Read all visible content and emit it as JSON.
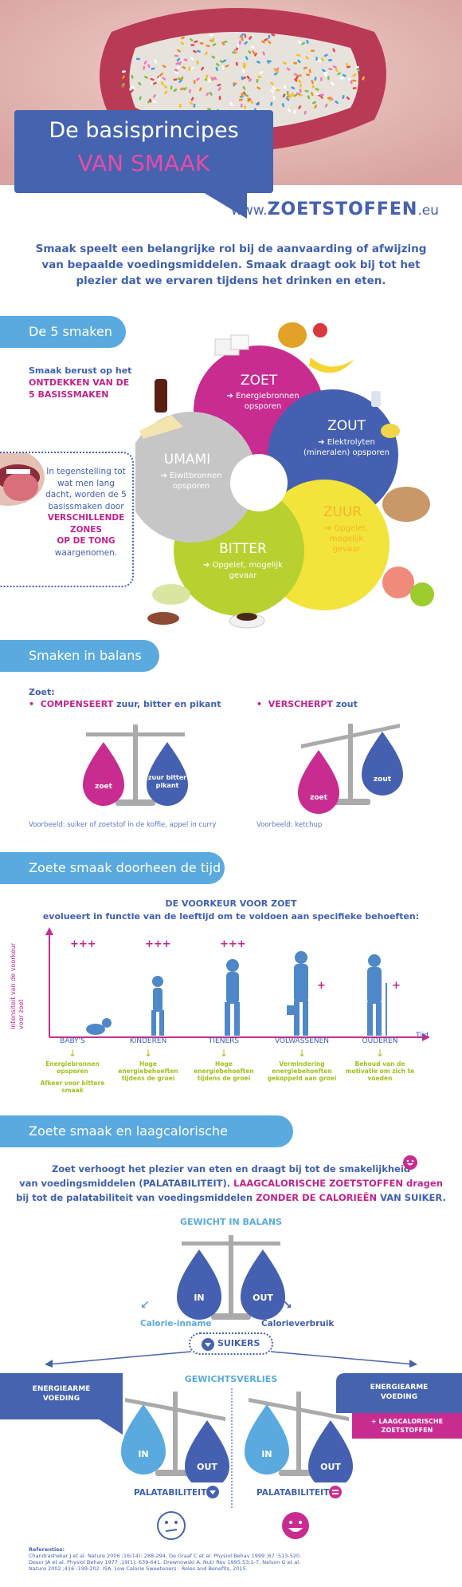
{
  "header": {
    "title_line1": "De basisprincipes",
    "title_line2": "VAN SMAAK",
    "site_prefix": "www.",
    "site_brand": "ZOETSTOFFEN",
    "site_suffix": ".eu"
  },
  "intro": "Smaak speelt een belangrijke rol bij de aanvaarding of afwijzing van bepaalde voedingsmiddelen. Smaak draagt ook bij tot het plezier dat we ervaren tijdens het drinken en eten.",
  "section1": {
    "title": "De 5 smaken",
    "lead_normal": "Smaak berust op het",
    "lead_bold": "ONTDEKKEN VAN DE 5 BASISSMAKEN",
    "tongue_text": "In tegenstelling tot wat men lang dacht, worden de 5 basissmaken door",
    "tongue_bold": "VERSCHILLENDE ZONES",
    "tongue_bold2": "OP DE TONG",
    "tongue_end": "waargenomen.",
    "tastes": {
      "zoet": {
        "name": "ZOET",
        "desc": "Energiebronnen opsporen"
      },
      "zout": {
        "name": "ZOUT",
        "desc": "Elektrolyten (mineralen) opsporen"
      },
      "zuur": {
        "name": "ZUUR",
        "desc": "Opgelet, mogelijk gevaar"
      },
      "bitter": {
        "name": "BITTER",
        "desc": "Opgelet, mogelijk gevaar"
      },
      "umami": {
        "name": "UMAMI",
        "desc": "Eiwitbronnen opsporen"
      }
    },
    "colors": {
      "zoet": "#c92c91",
      "zout": "#4560b0",
      "zuur": "#f2e43a",
      "bitter": "#b8d130",
      "umami": "#bdbdbd"
    }
  },
  "section2": {
    "title": "Smaken in balans",
    "zoet_label": "Zoet:",
    "left_bold": "COMPENSEERT",
    "left_rest": "zuur, bitter en pikant",
    "right_bold": "VERSCHERPT",
    "right_rest": "zout",
    "left_drop_a": "zoet",
    "left_drop_b": "zuur bitter pikant",
    "right_drop_a": "zoet",
    "right_drop_b": "zout",
    "left_example": "Voorbeeld: suiker of zoetstof in de koffie, appel in curry",
    "right_example": "Voorbeeld: ketchup"
  },
  "section3": {
    "title": "Zoete smaak doorheen de tijd",
    "heading": "DE VOORKEUR VOOR ZOET",
    "subheading": "evolueert in functie van de leeftijd om te voldoen aan specifieke behoeften:",
    "y_axis": "Intensiteit van de voorkeur voor zoet",
    "x_axis": "Tijd",
    "plus_marker": "+++",
    "single_plus": "+",
    "stages": [
      {
        "name": "BABY'S",
        "note": "Energiebronnen opsporen",
        "extra": "Afkeer voor bittere smaak"
      },
      {
        "name": "KINDEREN",
        "note": "Hoge energiebehoeften tijdens de groei",
        "extra": ""
      },
      {
        "name": "TIENERS",
        "note": "Hoge energiebehoeften tijdens de groei",
        "extra": ""
      },
      {
        "name": "VOLWASSENEN",
        "note": "Vermindering energiebehoeften gekoppeld aan groei",
        "extra": ""
      },
      {
        "name": "OUDEREN",
        "note": "Behoud van de motivatie om zich te voeden",
        "extra": ""
      }
    ]
  },
  "section4": {
    "title": "Zoete smaak en laagcalorische zoetstoffen",
    "text1": "Zoet verhoogt het plezier van eten en draagt bij tot de smakelijkheid",
    "text2a": "van voedingsmiddelen (PALATABILITEIT).",
    "text2b": "LAAGCALORISCHE ZOETSTOFFEN dragen",
    "text3a": "bij tot de palatabiliteit van voedingsmiddelen",
    "text3b": "ZONDER DE CALORIEËN",
    "text3c": "VAN SUIKER.",
    "balance_title": "GEWICHT IN BALANS",
    "in_label": "IN",
    "out_label": "OUT",
    "calorie_in": "Calorie-inname",
    "calorie_out": "Calorieverbruik",
    "suikers": "SUIKERS",
    "loss_title": "GEWICHTSVERLIES",
    "left_badge": "ENERGIEARME VOEDING",
    "right_badge": "ENERGIEARME VOEDING",
    "right_plus": "+ LAAGCALORISCHE ZOETSTOFFEN",
    "palat_label": "PALATABILITEIT"
  },
  "references": {
    "title": "Referenties:",
    "lines": [
      "Chandrashekar J et al. Nature 2006 ;16(14): 288-294. De Graaf C et al. Physiol Behav 1999 ;67 :513-520.",
      "Desor JA et al. Physiol Behav 1977 ;19(1): 639-641. Drewnowski A. Nutr Rev 1995;53:1-7. Nelson G et al.",
      "Nature 2002 ;416 :199-202. ISA. Low Calorie Sweeteners : Roles and Benefits, 2015."
    ]
  }
}
